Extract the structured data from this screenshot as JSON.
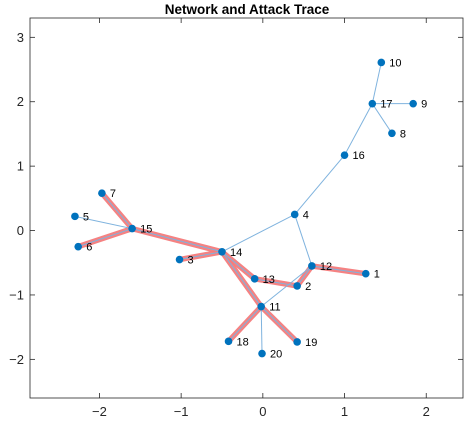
{
  "chart_data": {
    "type": "network",
    "title": "Network and Attack Trace",
    "xlabel": "",
    "ylabel": "",
    "xlim": [
      -2.85,
      2.45
    ],
    "ylim": [
      -2.6,
      3.3
    ],
    "xticks": [
      -2,
      -1,
      0,
      1,
      2
    ],
    "yticks": [
      -2,
      -1,
      0,
      1,
      2,
      3
    ],
    "grid": false,
    "nodes": [
      {
        "id": "1",
        "x": 1.26,
        "y": -0.67
      },
      {
        "id": "2",
        "x": 0.42,
        "y": -0.86
      },
      {
        "id": "3",
        "x": -1.02,
        "y": -0.45
      },
      {
        "id": "4",
        "x": 0.39,
        "y": 0.25
      },
      {
        "id": "5",
        "x": -2.3,
        "y": 0.22
      },
      {
        "id": "6",
        "x": -2.26,
        "y": -0.25
      },
      {
        "id": "7",
        "x": -1.97,
        "y": 0.58
      },
      {
        "id": "8",
        "x": 1.58,
        "y": 1.51
      },
      {
        "id": "9",
        "x": 1.84,
        "y": 1.97
      },
      {
        "id": "10",
        "x": 1.45,
        "y": 2.61
      },
      {
        "id": "11",
        "x": -0.02,
        "y": -1.18
      },
      {
        "id": "12",
        "x": 0.6,
        "y": -0.55
      },
      {
        "id": "13",
        "x": -0.1,
        "y": -0.75
      },
      {
        "id": "14",
        "x": -0.5,
        "y": -0.33
      },
      {
        "id": "15",
        "x": -1.6,
        "y": 0.03
      },
      {
        "id": "16",
        "x": 1.0,
        "y": 1.17
      },
      {
        "id": "17",
        "x": 1.34,
        "y": 1.97
      },
      {
        "id": "18",
        "x": -0.42,
        "y": -1.72
      },
      {
        "id": "19",
        "x": 0.42,
        "y": -1.73
      },
      {
        "id": "20",
        "x": -0.01,
        "y": -1.91
      }
    ],
    "edges": [
      [
        "16",
        "4"
      ],
      [
        "16",
        "17"
      ],
      [
        "17",
        "10"
      ],
      [
        "17",
        "9"
      ],
      [
        "17",
        "8"
      ],
      [
        "4",
        "14"
      ],
      [
        "4",
        "12"
      ],
      [
        "5",
        "15"
      ],
      [
        "12",
        "11"
      ],
      [
        "11",
        "20"
      ],
      [
        "15",
        "7"
      ],
      [
        "15",
        "6"
      ],
      [
        "15",
        "14"
      ],
      [
        "14",
        "3"
      ],
      [
        "14",
        "13"
      ],
      [
        "14",
        "11"
      ],
      [
        "13",
        "2"
      ],
      [
        "2",
        "12"
      ],
      [
        "12",
        "1"
      ],
      [
        "11",
        "18"
      ],
      [
        "11",
        "19"
      ]
    ],
    "attack_trace": [
      [
        "7",
        "15"
      ],
      [
        "6",
        "15"
      ],
      [
        "15",
        "14"
      ],
      [
        "14",
        "3"
      ],
      [
        "14",
        "13"
      ],
      [
        "13",
        "2"
      ],
      [
        "2",
        "12"
      ],
      [
        "12",
        "1"
      ],
      [
        "14",
        "11"
      ],
      [
        "11",
        "18"
      ],
      [
        "11",
        "19"
      ]
    ],
    "colors": {
      "node": "#0072bd",
      "edge": "#7fb3de",
      "trace": "#f47b7b",
      "axis": "#262626"
    }
  }
}
